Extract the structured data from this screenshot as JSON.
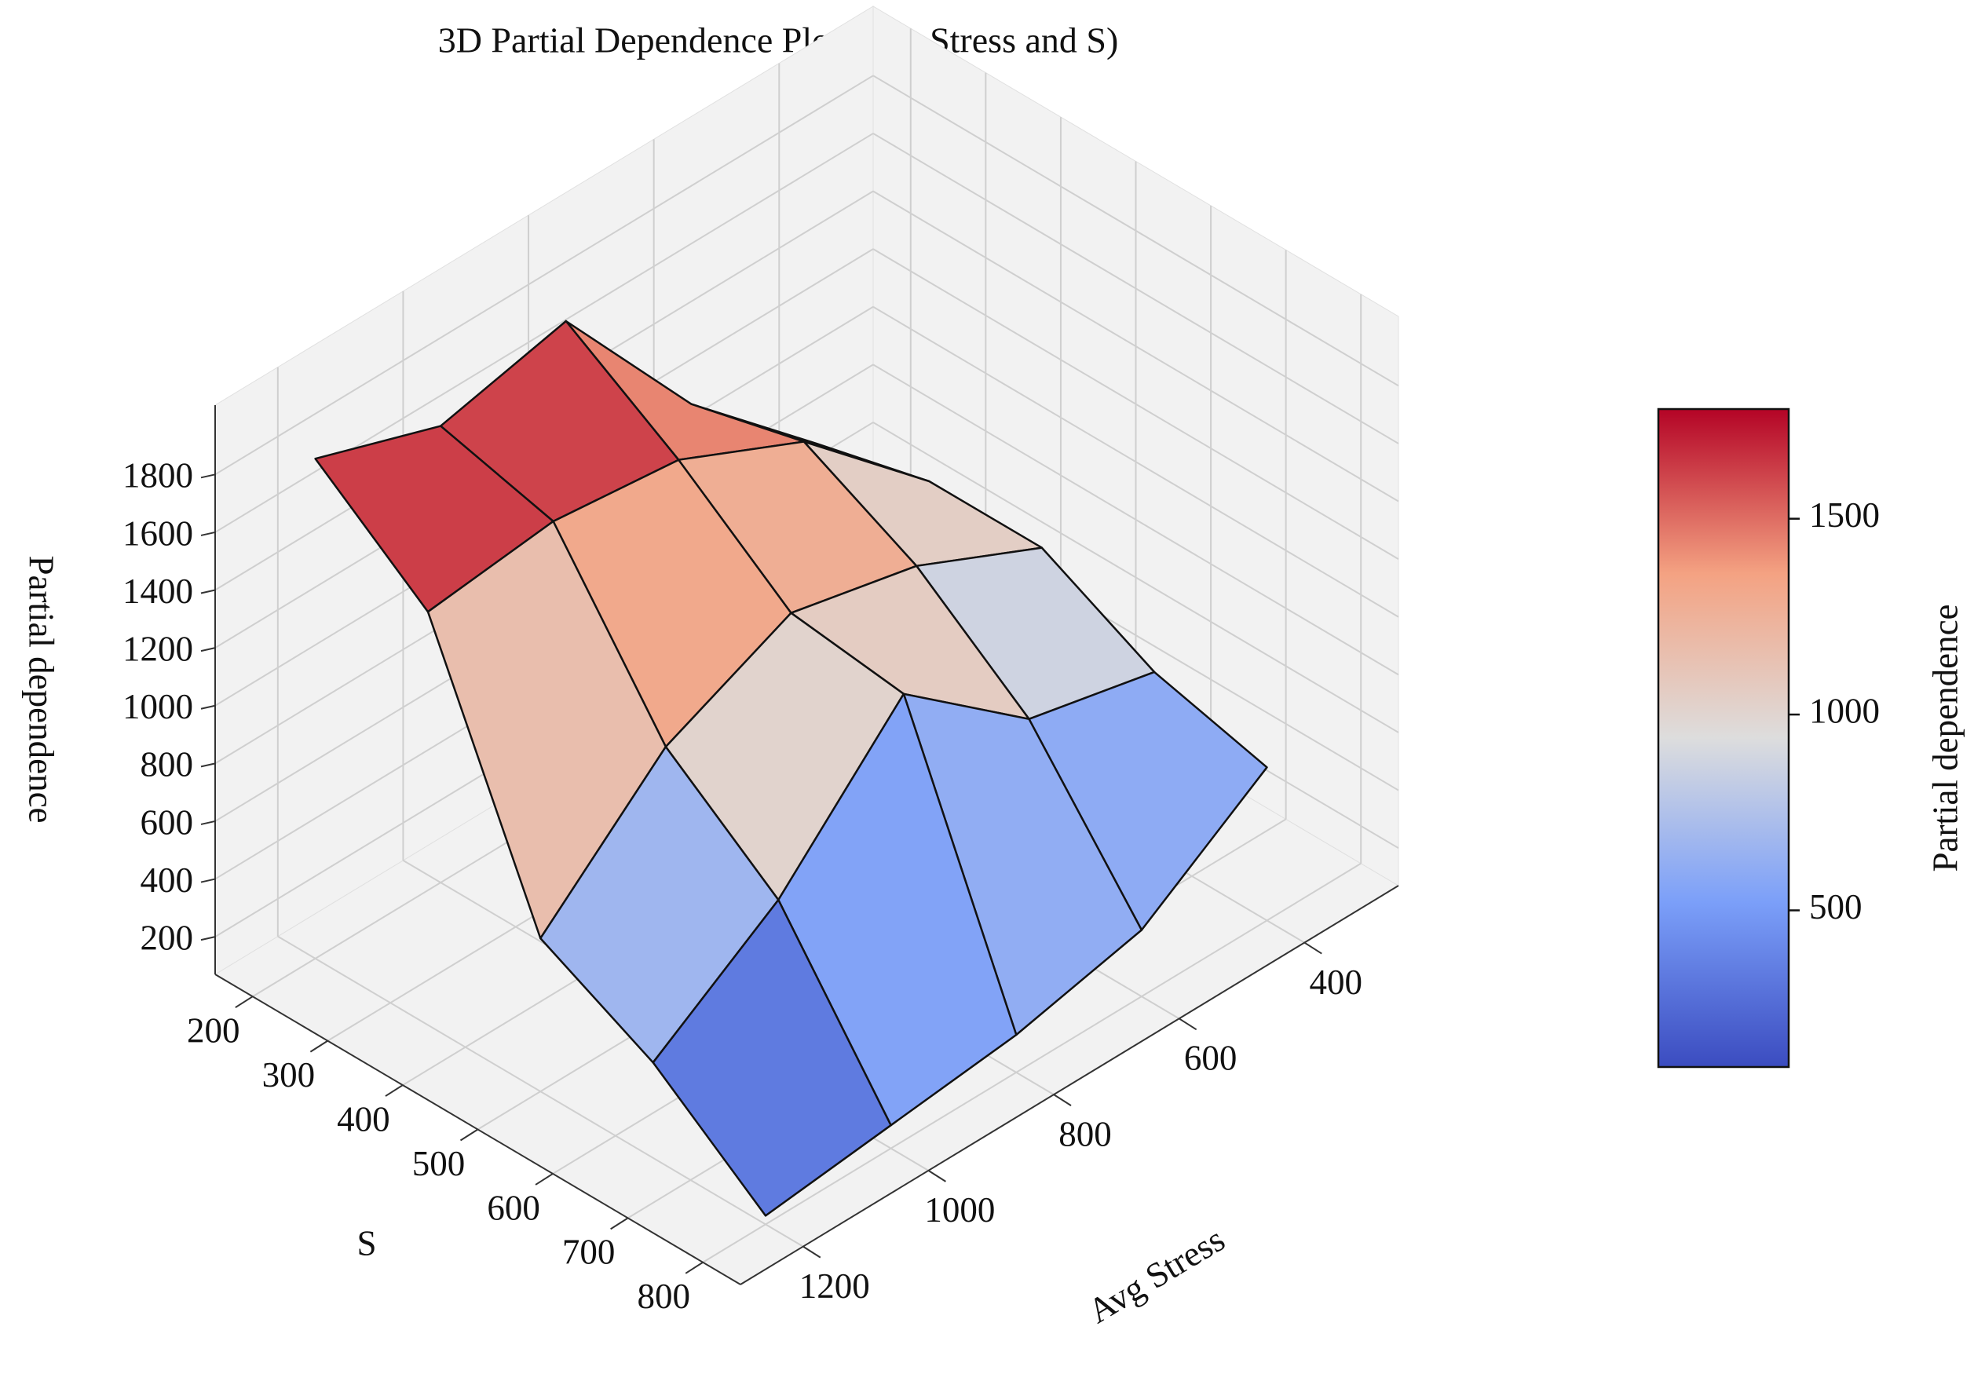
{
  "chart_data": {
    "type": "surface3d",
    "title": "3D Partial Dependence Plot (Avg Stress and S)",
    "xlabel": "Avg Stress",
    "ylabel": "S",
    "zlabel": "Partial dependence",
    "x": [
      400,
      600,
      800,
      1000,
      1200
    ],
    "y": [
      200,
      350,
      500,
      650,
      800
    ],
    "z": [
      [
        800,
        1200,
        1750,
        1650,
        1800
      ],
      [
        900,
        1300,
        1500,
        1550,
        1500
      ],
      [
        900,
        1100,
        1200,
        1000,
        600
      ],
      [
        700,
        800,
        1150,
        700,
        400
      ],
      [
        600,
        300,
        200,
        150,
        100
      ]
    ],
    "xlim": [
      250,
      1300
    ],
    "xticks": [
      400,
      600,
      800,
      1000,
      1200
    ],
    "ylim": [
      150,
      850
    ],
    "yticks": [
      200,
      300,
      400,
      500,
      600,
      700,
      800
    ],
    "zlim": [
      70,
      2040
    ],
    "zticks": [
      200,
      400,
      600,
      800,
      1000,
      1200,
      1400,
      1600,
      1800
    ],
    "colormap": "coolwarm",
    "grid": true,
    "colorbar": {
      "label": "Partial dependence",
      "lim": [
        100,
        1780
      ],
      "ticks": [
        500,
        1000,
        1500
      ]
    }
  }
}
